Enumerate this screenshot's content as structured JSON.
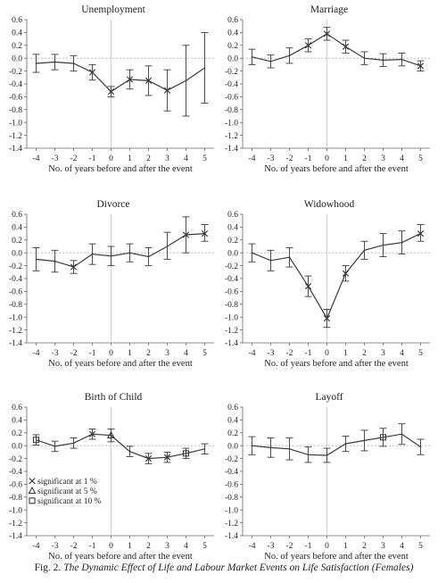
{
  "figure": {
    "caption_label": "Fig. 2.",
    "caption_title": "The Dynamic Effect of Life and Labour Market Events on Life Satisfaction (Females)"
  },
  "legend": {
    "items": [
      {
        "symbol": "x",
        "label": "significant at 1 %"
      },
      {
        "symbol": "triangle",
        "label": "significant at 5 %"
      },
      {
        "symbol": "square",
        "label": "significant at 10 %"
      }
    ]
  },
  "chart_data": [
    {
      "type": "line",
      "title": "Unemployment",
      "xlabel": "No. of years before and after the event",
      "ylabel": "",
      "x": [
        -4,
        -3,
        -2,
        -1,
        0,
        1,
        2,
        3,
        4,
        5
      ],
      "y": [
        -0.08,
        -0.06,
        -0.08,
        -0.22,
        -0.52,
        -0.33,
        -0.35,
        -0.5,
        -0.35,
        -0.15
      ],
      "ci_low": [
        -0.22,
        -0.18,
        -0.2,
        -0.34,
        -0.6,
        -0.48,
        -0.58,
        -0.82,
        -0.9,
        -0.7
      ],
      "ci_high": [
        0.06,
        0.06,
        0.04,
        -0.1,
        -0.44,
        -0.18,
        -0.12,
        -0.18,
        0.2,
        0.4
      ],
      "significance": [
        "none",
        "none",
        "none",
        "x",
        "x",
        "x",
        "x",
        "x",
        "none",
        "none"
      ],
      "ylim": [
        -1.4,
        0.6
      ],
      "yticks": [
        "0.6",
        "0.4",
        "0.2",
        "0.0",
        "-0.2",
        "-0.4",
        "-0.6",
        "-0.8",
        "-1.0",
        "-1.2",
        "-1.4"
      ],
      "xticks": [
        "-4",
        "-3",
        "-2",
        "-1",
        "0",
        "1",
        "2",
        "3",
        "4",
        "5"
      ],
      "grid": false
    },
    {
      "type": "line",
      "title": "Marriage",
      "xlabel": "No. of years before and after the event",
      "ylabel": "",
      "x": [
        -4,
        -3,
        -2,
        -1,
        0,
        1,
        2,
        3,
        4,
        5
      ],
      "y": [
        0.02,
        -0.05,
        0.04,
        0.2,
        0.38,
        0.18,
        0.0,
        -0.03,
        -0.02,
        -0.12
      ],
      "ci_low": [
        -0.1,
        -0.15,
        -0.08,
        0.1,
        0.28,
        0.08,
        -0.1,
        -0.13,
        -0.12,
        -0.2
      ],
      "ci_high": [
        0.14,
        0.05,
        0.16,
        0.3,
        0.48,
        0.28,
        0.1,
        0.07,
        0.08,
        -0.04
      ],
      "significance": [
        "none",
        "none",
        "none",
        "x",
        "x",
        "x",
        "none",
        "none",
        "none",
        "x"
      ],
      "ylim": [
        -1.4,
        0.6
      ],
      "yticks": [
        "0.6",
        "0.4",
        "0.2",
        "0.0",
        "-0.2",
        "-0.4",
        "-0.6",
        "-0.8",
        "-1.0",
        "-1.2",
        "-1.4"
      ],
      "xticks": [
        "-4",
        "-3",
        "-2",
        "-1",
        "0",
        "1",
        "2",
        "3",
        "4",
        "5"
      ],
      "grid": false
    },
    {
      "type": "line",
      "title": "Divorce",
      "xlabel": "No. of years before and after the event",
      "ylabel": "",
      "x": [
        -4,
        -3,
        -2,
        -1,
        0,
        1,
        2,
        3,
        4,
        5
      ],
      "y": [
        -0.1,
        -0.13,
        -0.22,
        -0.02,
        -0.05,
        0.0,
        -0.06,
        0.1,
        0.28,
        0.3
      ],
      "ci_low": [
        -0.28,
        -0.3,
        -0.32,
        -0.18,
        -0.2,
        -0.14,
        -0.2,
        -0.1,
        0.0,
        0.18
      ],
      "ci_high": [
        0.08,
        0.04,
        -0.12,
        0.14,
        0.1,
        0.14,
        0.08,
        0.32,
        0.56,
        0.44
      ],
      "significance": [
        "none",
        "none",
        "x",
        "none",
        "none",
        "none",
        "none",
        "none",
        "x",
        "x"
      ],
      "ylim": [
        -1.4,
        0.6
      ],
      "yticks": [
        "0.6",
        "0.4",
        "0.2",
        "0.0",
        "-0.2",
        "-0.4",
        "-0.6",
        "-0.8",
        "-1.0",
        "-1.2",
        "-1.4"
      ],
      "xticks": [
        "-4",
        "-3",
        "-2",
        "-1",
        "0",
        "1",
        "2",
        "3",
        "4",
        "5"
      ],
      "grid": false
    },
    {
      "type": "line",
      "title": "Widowhood",
      "xlabel": "No. of years before and after the event",
      "ylabel": "",
      "x": [
        -4,
        -3,
        -2,
        -1,
        0,
        1,
        2,
        3,
        4,
        5
      ],
      "y": [
        0.0,
        -0.12,
        -0.07,
        -0.52,
        -1.02,
        -0.32,
        0.04,
        0.12,
        0.16,
        0.3
      ],
      "ci_low": [
        -0.14,
        -0.28,
        -0.22,
        -0.68,
        -1.16,
        -0.44,
        -0.1,
        -0.06,
        -0.02,
        0.18
      ],
      "ci_high": [
        0.14,
        0.04,
        0.08,
        -0.36,
        -0.88,
        -0.2,
        0.18,
        0.3,
        0.34,
        0.44
      ],
      "significance": [
        "none",
        "none",
        "none",
        "x",
        "x",
        "x",
        "none",
        "none",
        "none",
        "x"
      ],
      "ylim": [
        -1.4,
        0.6
      ],
      "yticks": [
        "0.6",
        "0.4",
        "0.2",
        "0.0",
        "-0.2",
        "-0.4",
        "-0.6",
        "-0.8",
        "-1.0",
        "-1.2",
        "-1.4"
      ],
      "xticks": [
        "-4",
        "-3",
        "-2",
        "-1",
        "0",
        "1",
        "2",
        "3",
        "4",
        "5"
      ],
      "grid": false
    },
    {
      "type": "line",
      "title": "Birth of Child",
      "xlabel": "No. of years before and after the event",
      "ylabel": "",
      "x": [
        -4,
        -3,
        -2,
        -1,
        0,
        1,
        2,
        3,
        4,
        5
      ],
      "y": [
        0.09,
        -0.01,
        0.04,
        0.18,
        0.16,
        -0.09,
        -0.2,
        -0.18,
        -0.12,
        -0.05
      ],
      "ci_low": [
        0.01,
        -0.09,
        -0.04,
        0.1,
        0.06,
        -0.17,
        -0.28,
        -0.26,
        -0.2,
        -0.13
      ],
      "ci_high": [
        0.17,
        0.07,
        0.12,
        0.26,
        0.26,
        -0.01,
        -0.12,
        -0.1,
        -0.04,
        0.03
      ],
      "significance": [
        "square",
        "none",
        "none",
        "x",
        "triangle",
        "none",
        "x",
        "x",
        "square",
        "none"
      ],
      "ylim": [
        -1.4,
        0.6
      ],
      "yticks": [
        "0.6",
        "0.4",
        "0.2",
        "0.0",
        "-0.2",
        "-0.4",
        "-0.6",
        "-0.8",
        "-1.0",
        "-1.2",
        "-1.4"
      ],
      "xticks": [
        "-4",
        "-3",
        "-2",
        "-1",
        "0",
        "1",
        "2",
        "3",
        "4",
        "5"
      ],
      "grid": false,
      "legend": "bottom-left"
    },
    {
      "type": "line",
      "title": "Layoff",
      "xlabel": "No. of years before and after the event",
      "ylabel": "",
      "x": [
        -4,
        -3,
        -2,
        -1,
        0,
        1,
        2,
        3,
        4,
        5
      ],
      "y": [
        0.0,
        -0.03,
        -0.05,
        -0.14,
        -0.15,
        0.03,
        0.08,
        0.13,
        0.18,
        -0.02
      ],
      "ci_low": [
        -0.14,
        -0.18,
        -0.22,
        -0.26,
        -0.26,
        -0.09,
        -0.08,
        -0.01,
        0.02,
        -0.14
      ],
      "ci_high": [
        0.14,
        0.12,
        0.12,
        -0.02,
        -0.04,
        0.15,
        0.24,
        0.27,
        0.34,
        0.1
      ],
      "significance": [
        "none",
        "none",
        "none",
        "none",
        "none",
        "none",
        "none",
        "square",
        "none",
        "none"
      ],
      "ylim": [
        -1.4,
        0.6
      ],
      "yticks": [
        "0.6",
        "0.4",
        "0.2",
        "0.0",
        "-0.2",
        "-0.4",
        "-0.6",
        "-0.8",
        "-1.0",
        "-1.2",
        "-1.4"
      ],
      "xticks": [
        "-4",
        "-3",
        "-2",
        "-1",
        "0",
        "1",
        "2",
        "3",
        "4",
        "5"
      ],
      "grid": false
    }
  ]
}
